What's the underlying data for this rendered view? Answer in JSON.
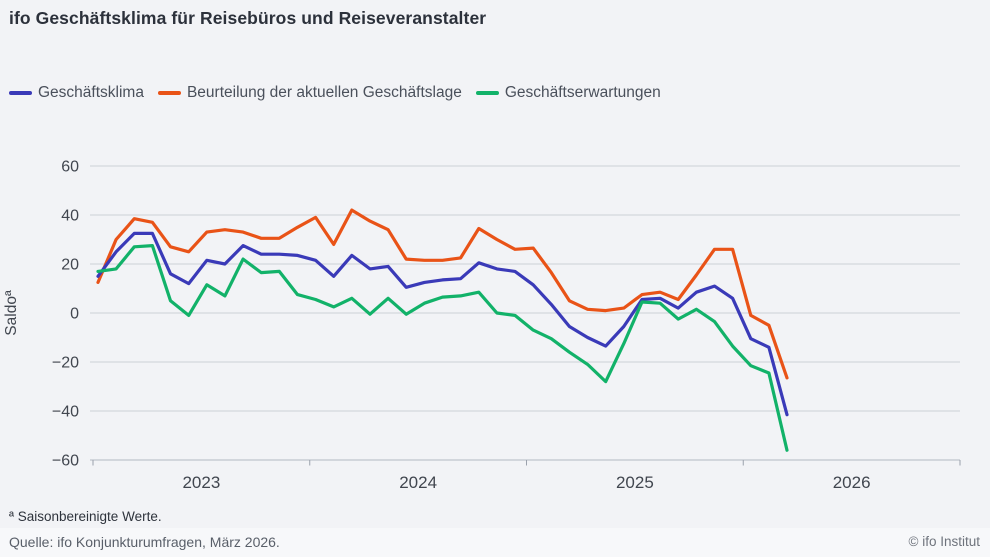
{
  "header": {
    "title": "ifo Geschäftsklima für Reisebüros und Reiseveranstalter"
  },
  "legend": {
    "items": [
      {
        "label": "Geschäftsklima",
        "color": "#3a3ab8"
      },
      {
        "label": "Beurteilung der aktuellen Geschäftslage",
        "color": "#e95317"
      },
      {
        "label": "Geschäftserwartungen",
        "color": "#12b269"
      }
    ]
  },
  "chart_data": {
    "type": "line",
    "title": "ifo Geschäftsklima für Reisebüros und Reiseveranstalter",
    "xlabel": "",
    "ylabel": "Saldoª",
    "ylim": [
      -60,
      60
    ],
    "yticks": [
      -60,
      -40,
      -20,
      0,
      20,
      40,
      60
    ],
    "grid": "horizontal",
    "legend_position": "top-left",
    "frequency": "monthly",
    "x_start": "2023-01",
    "x_end": "2026-03",
    "year_ticks": [
      2023,
      2024,
      2025,
      2026
    ],
    "months": [
      "2023-01",
      "2023-02",
      "2023-03",
      "2023-04",
      "2023-05",
      "2023-06",
      "2023-07",
      "2023-08",
      "2023-09",
      "2023-10",
      "2023-11",
      "2023-12",
      "2024-01",
      "2024-02",
      "2024-03",
      "2024-04",
      "2024-05",
      "2024-06",
      "2024-07",
      "2024-08",
      "2024-09",
      "2024-10",
      "2024-11",
      "2024-12",
      "2025-01",
      "2025-02",
      "2025-03",
      "2025-04",
      "2025-05",
      "2025-06",
      "2025-07",
      "2025-08",
      "2025-09",
      "2025-10",
      "2025-11",
      "2025-12",
      "2026-01",
      "2026-02",
      "2026-03"
    ],
    "series": [
      {
        "name": "Geschäftsklima",
        "color": "#3a3ab8",
        "values": [
          15,
          25,
          32.5,
          32.5,
          16,
          12,
          21.5,
          20,
          27.5,
          24,
          24,
          23.5,
          21.5,
          15,
          23.5,
          18,
          19,
          10.5,
          12.5,
          13.5,
          14,
          20.5,
          18,
          17,
          11.5,
          3.5,
          -5.5,
          -10,
          -13.5,
          -5.5,
          5.5,
          6,
          2,
          8.5,
          11,
          6,
          -10.5,
          -14,
          -41.5
        ]
      },
      {
        "name": "Beurteilung der aktuellen Geschäftslage",
        "color": "#e95317",
        "values": [
          12.5,
          30,
          38.5,
          37,
          27,
          25,
          33,
          34,
          33,
          30.5,
          30.5,
          35,
          39,
          28,
          42,
          37.5,
          34,
          22,
          21.5,
          21.5,
          22.5,
          34.5,
          30,
          26,
          26.5,
          16.5,
          5,
          1.5,
          1,
          2,
          7.5,
          8.5,
          5.5,
          15.5,
          26,
          26,
          -1,
          -5,
          -26.5
        ]
      },
      {
        "name": "Geschäftserwartungen",
        "color": "#12b269",
        "values": [
          17,
          18,
          27,
          27.5,
          5,
          -1,
          11.5,
          7,
          22,
          16.5,
          17,
          7.5,
          5.5,
          2.5,
          6,
          -0.5,
          6,
          -0.5,
          4,
          6.5,
          7,
          8.5,
          0,
          -1,
          -7,
          -10.5,
          -16,
          -21,
          -28,
          -12.5,
          4.5,
          4,
          -2.5,
          1.5,
          -3.5,
          -13.5,
          -21.5,
          -24.5,
          -56
        ]
      }
    ]
  },
  "footer": {
    "footnote": "ª Saisonbereinigte Werte.",
    "source": "Quelle: ifo Konjunkturumfragen, März 2026.",
    "copyright": "© ifo Institut"
  }
}
